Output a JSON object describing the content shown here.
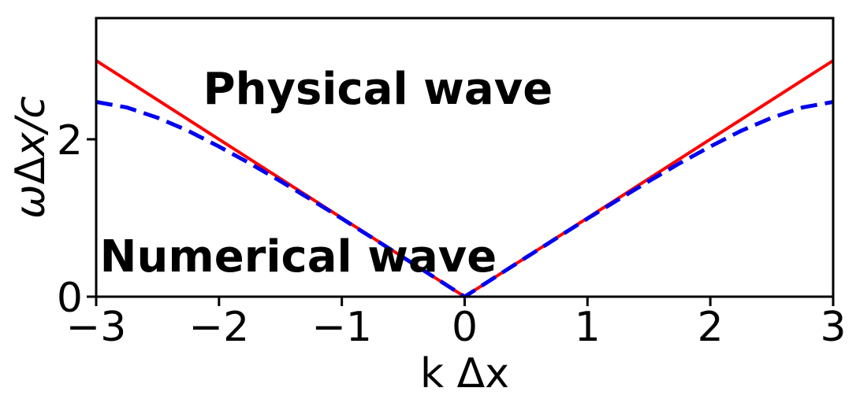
{
  "figure": {
    "background": "#ffffff",
    "axis_color": "#000000"
  },
  "chart_data": {
    "type": "line",
    "title": "",
    "xlabel": "k Δx",
    "ylabel": "ωΔx/c",
    "xlim": [
      -3,
      3
    ],
    "ylim": [
      0,
      3.54
    ],
    "xticks": {
      "values": [
        -3,
        -2,
        -1,
        0,
        1,
        2,
        3
      ],
      "labels": [
        "−3",
        "−2",
        "−1",
        "0",
        "1",
        "2",
        "3"
      ]
    },
    "yticks": {
      "values": [
        0,
        2
      ],
      "labels": [
        "0",
        "2"
      ]
    },
    "grid": false,
    "frame": true,
    "legend_position": "none (inline colored text annotations)",
    "series": [
      {
        "name": "Physical wave",
        "color": "#ff0000",
        "style": "solid",
        "stroke_width": 4,
        "x": [
          -3,
          0,
          3
        ],
        "y": [
          3,
          0,
          3
        ]
      },
      {
        "name": "Numerical wave",
        "color": "#0000ee",
        "style": "dashed",
        "stroke_width": 5,
        "x": [
          -3,
          -2.75,
          -2.5,
          -2.25,
          -2,
          -1.75,
          -1.5,
          -1.25,
          -1,
          -0.75,
          -0.5,
          -0.25,
          0,
          0.25,
          0.5,
          0.75,
          1,
          1.25,
          1.5,
          1.75,
          2,
          2.25,
          2.5,
          2.75,
          3
        ],
        "y": [
          2.475,
          2.404,
          2.274,
          2.107,
          1.908,
          1.695,
          1.468,
          1.233,
          0.992,
          0.746,
          0.499,
          0.25,
          0,
          0.25,
          0.499,
          0.746,
          0.992,
          1.233,
          1.468,
          1.695,
          1.908,
          2.107,
          2.274,
          2.404,
          2.475
        ]
      }
    ],
    "annotations": [
      {
        "text": "Physical wave",
        "color": "#ff0000",
        "x": -2.13,
        "y": 2.45,
        "anchor": "start"
      },
      {
        "text": "Numerical wave",
        "color": "#0000ee",
        "x": -2.97,
        "y": 0.32,
        "anchor": "start"
      }
    ]
  }
}
